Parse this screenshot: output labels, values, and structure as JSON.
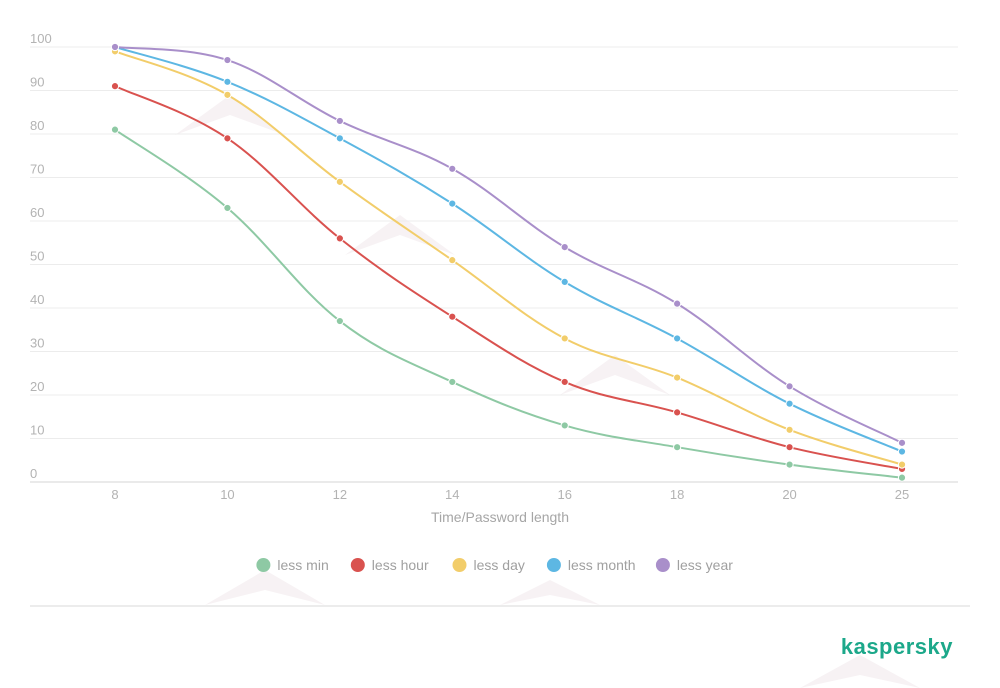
{
  "chart_data": {
    "type": "line",
    "xlabel": "Time/Password length",
    "categories": [
      "8",
      "10",
      "12",
      "14",
      "16",
      "18",
      "20",
      "25"
    ],
    "ylim": [
      0,
      100
    ],
    "yticks": [
      "0",
      "10",
      "20",
      "30",
      "40",
      "50",
      "60",
      "70",
      "80",
      "90",
      "100"
    ],
    "grid": true,
    "legend_position": "bottom-center",
    "series": [
      {
        "name": "less min",
        "color": "#8ec9a4",
        "values": [
          81,
          63,
          37,
          23,
          13,
          8,
          4,
          1
        ]
      },
      {
        "name": "less hour",
        "color": "#d9524f",
        "values": [
          91,
          79,
          56,
          38,
          23,
          16,
          8,
          3
        ]
      },
      {
        "name": "less day",
        "color": "#f2cd6a",
        "values": [
          99,
          89,
          69,
          51,
          33,
          24,
          12,
          4
        ]
      },
      {
        "name": "less month",
        "color": "#5db7e3",
        "values": [
          100,
          92,
          79,
          64,
          46,
          33,
          18,
          7
        ]
      },
      {
        "name": "less year",
        "color": "#a98fca",
        "values": [
          100,
          97,
          83,
          72,
          54,
          41,
          22,
          9
        ]
      }
    ]
  },
  "branding": {
    "logo_text": "kaspersky",
    "logo_color": "#1ca88a"
  }
}
